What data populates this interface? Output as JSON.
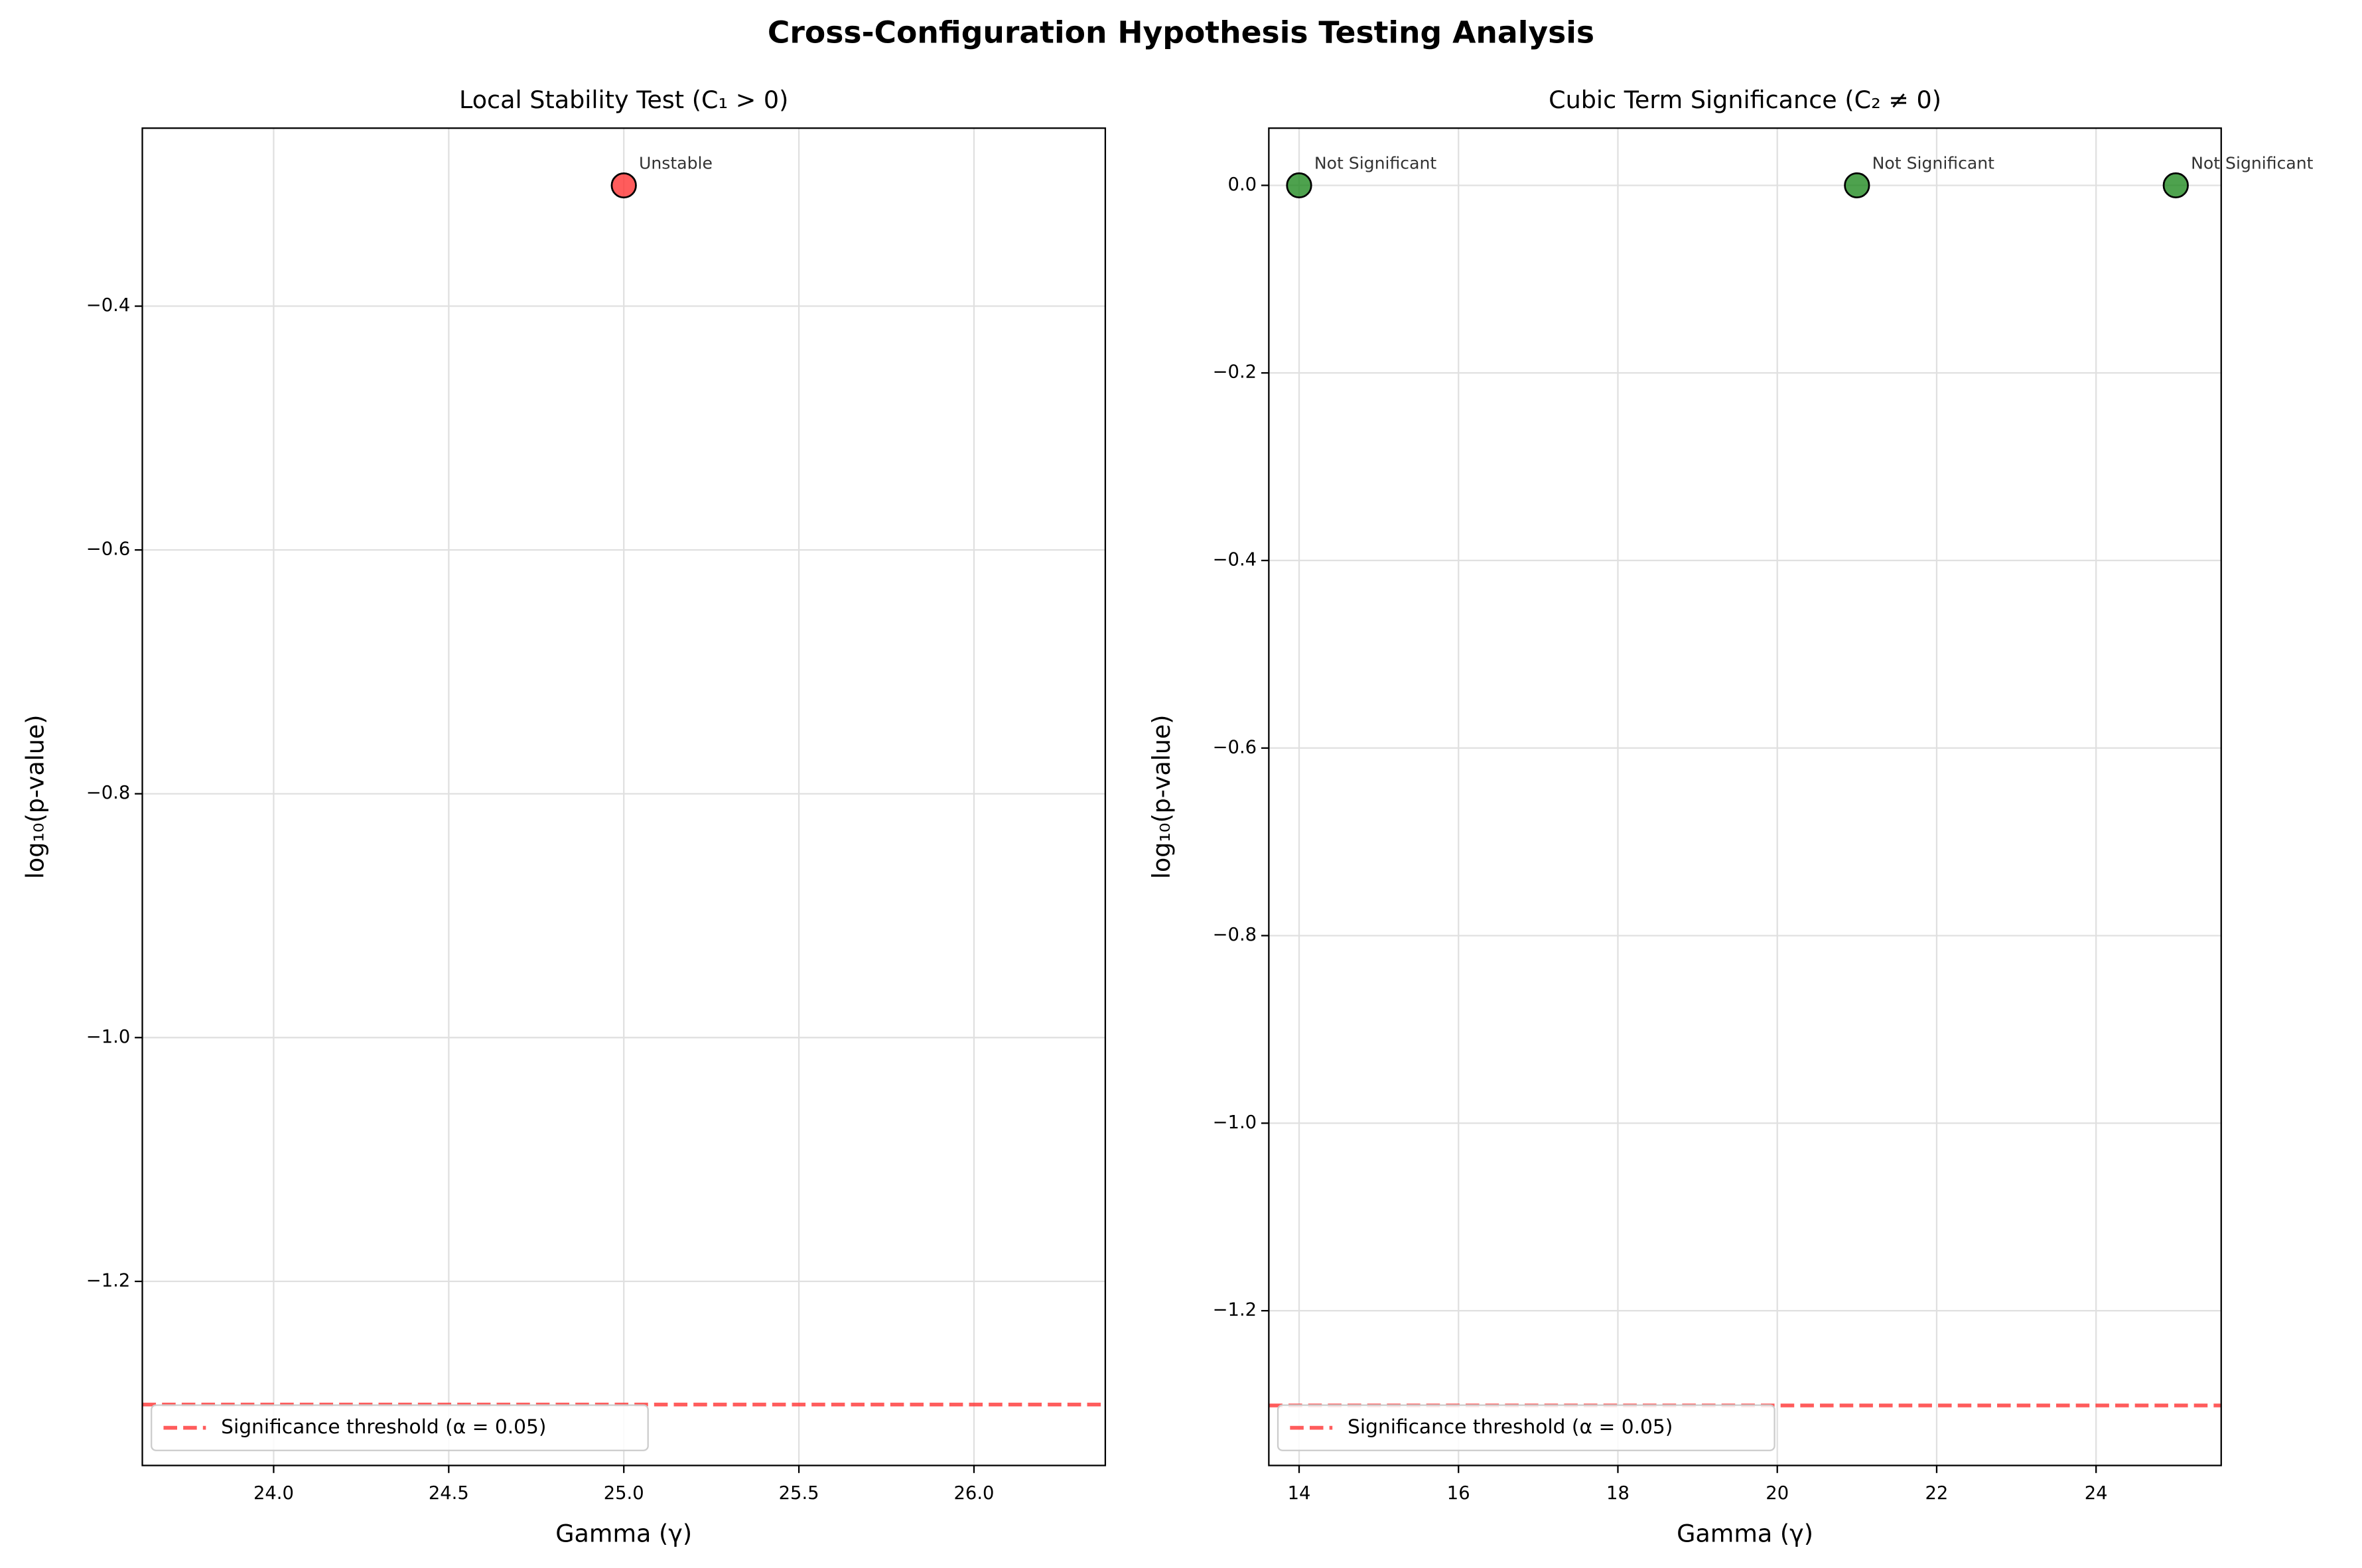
{
  "title": "Cross-Configuration Hypothesis Testing Analysis",
  "chart_data": [
    {
      "type": "scatter",
      "title": "Local Stability Test (C₁ > 0)",
      "xlabel": "Gamma (γ)",
      "ylabel": "log₁₀(p-value)",
      "x": [
        25
      ],
      "y": [
        -0.301
      ],
      "color": "#ff3333",
      "annotations": [
        "Unstable"
      ],
      "hline": {
        "value": -1.301,
        "label": "Significance threshold (α = 0.05)",
        "color": "#ff3333"
      },
      "xlim": [
        23.625,
        26.375
      ],
      "ylim": [
        -1.351,
        -0.254
      ],
      "xticks": [
        {
          "value": 24,
          "label": "24.0"
        },
        24.5,
        {
          "value": 25,
          "label": "25.0"
        },
        25.5,
        {
          "value": 26,
          "label": "26.0"
        }
      ],
      "yticks": [
        {
          "value": -1.2,
          "label": "−1.2"
        },
        {
          "value": -1,
          "label": "−1.0"
        },
        {
          "value": -0.8,
          "label": "−0.8"
        },
        {
          "value": -0.6,
          "label": "−0.6"
        },
        {
          "value": -0.4,
          "label": "−0.4"
        }
      ],
      "grid": true
    },
    {
      "type": "scatter",
      "title": "Cubic Term Significance (C₂ ≠ 0)",
      "xlabel": "Gamma (γ)",
      "ylabel": "log₁₀(p-value)",
      "x": [
        14,
        21,
        25
      ],
      "y": [
        0,
        0,
        0
      ],
      "color": "#228b22",
      "annotations": [
        "Not Significant",
        "Not Significant",
        "Not Significant"
      ],
      "hline": {
        "value": -1.301,
        "label": "Significance threshold (α = 0.05)",
        "color": "#ff3333"
      },
      "xlim": [
        13.62,
        25.57
      ],
      "ylim": [
        -1.365,
        0.061
      ],
      "xticks": [
        14,
        16,
        18,
        20,
        22,
        24
      ],
      "yticks": [
        {
          "value": -1.2,
          "label": "−1.2"
        },
        {
          "value": -1,
          "label": "−1.0"
        },
        {
          "value": -0.8,
          "label": "−0.8"
        },
        {
          "value": -0.6,
          "label": "−0.6"
        },
        {
          "value": -0.4,
          "label": "−0.4"
        },
        {
          "value": -0.2,
          "label": "−0.2"
        },
        {
          "value": 0,
          "label": "0.0"
        }
      ],
      "grid": true
    }
  ]
}
